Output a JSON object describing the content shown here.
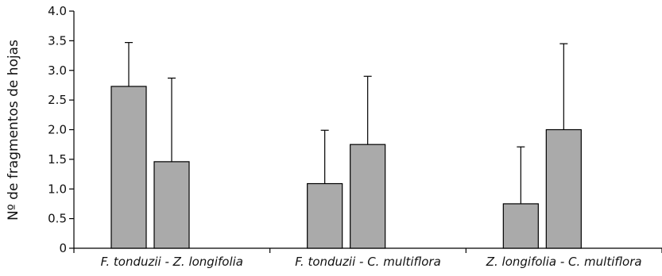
{
  "chart_data": {
    "type": "bar",
    "title": "",
    "xlabel": "",
    "ylabel": "Nº de fragmentos de hojas",
    "ylim": [
      0,
      4.0
    ],
    "yticks": [
      "0",
      "0.5",
      "1.0",
      "1.5",
      "2.0",
      "2.5",
      "3.0",
      "3.5",
      "4.0"
    ],
    "categories": [
      "F. tonduzii - Z. longifolia",
      "F. tonduzii - C. multiflora",
      "Z. longifolia - C. multiflora"
    ],
    "series": [
      {
        "values": [
          2.73,
          1.09,
          0.75
        ],
        "errors": [
          0.74,
          0.9,
          0.96
        ]
      },
      {
        "values": [
          1.46,
          1.75,
          2.0
        ],
        "errors": [
          1.41,
          1.15,
          1.45
        ]
      }
    ],
    "bar_color": "#aaaaaa",
    "grid": false,
    "error_bars": "upper"
  }
}
